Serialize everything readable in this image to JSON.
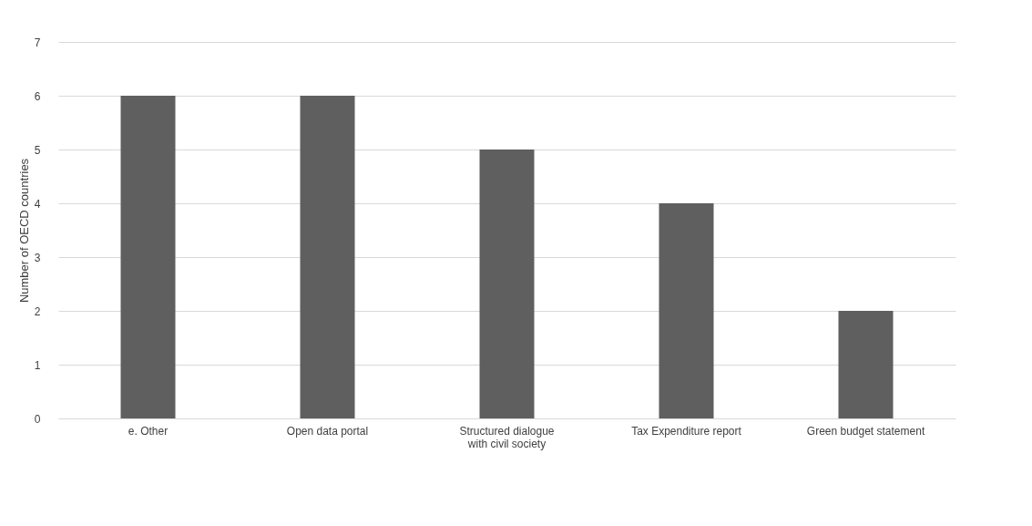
{
  "chart_data": {
    "type": "bar",
    "ylabel": "Number of OECD countries",
    "categories": [
      "e. Other",
      "Open data portal",
      "Structured dialogue with civil society",
      "Tax Expenditure report",
      "Green budget statement"
    ],
    "values": [
      6,
      6,
      5,
      4,
      2
    ],
    "color": "#5f5f5f",
    "ylim": [
      0,
      7
    ],
    "yticks": [
      0,
      1,
      2,
      3,
      4,
      5,
      6,
      7
    ],
    "grid": "y"
  }
}
